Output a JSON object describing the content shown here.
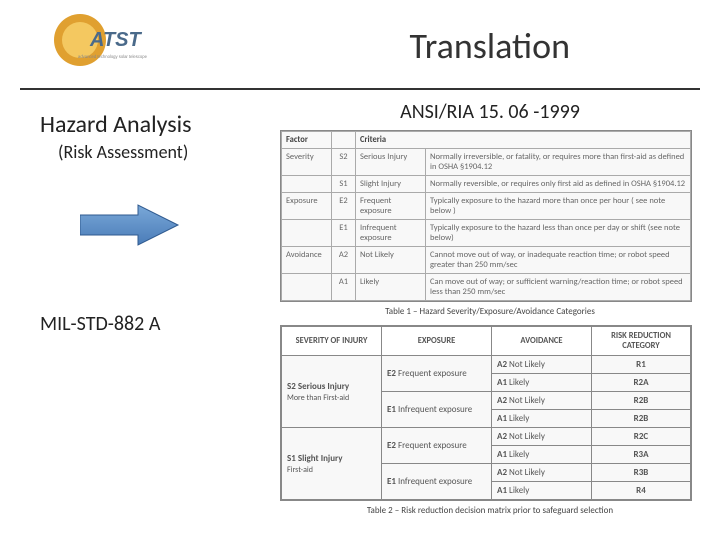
{
  "title": "Translation",
  "logo": {
    "text_top": "ATST",
    "text_bottom": "advanced technology solar telescope",
    "sun_color": "#e0a030",
    "inner_color": "#f4c860"
  },
  "left": {
    "hazard_title": "Hazard Analysis",
    "hazard_sub": "(Risk Assessment)",
    "mil_std": "MIL-STD-882 A",
    "arrow_color": "#5b8dc9",
    "arrow_stroke": "#2f5a8f"
  },
  "right": {
    "ansi_title": "ANSI/RIA 15. 06 -1999",
    "table1_caption": "Table 1 – Hazard Severity/Exposure/Avoidance Categories",
    "table2_caption": "Table 2 – Risk reduction decision matrix prior to safeguard selection",
    "t1": {
      "hdr": [
        "Factor",
        "",
        "Criteria"
      ],
      "rows": [
        [
          "Severity",
          "S2",
          "Serious Injury",
          "Normally irreversible, or fatality, or requires more than first-aid as defined in OSHA §1904.12"
        ],
        [
          "",
          "S1",
          "Slight Injury",
          "Normally reversible, or requires only first aid as defined in OSHA §1904.12"
        ],
        [
          "Exposure",
          "E2",
          "Frequent exposure",
          "Typically exposure to the hazard more than once per hour ( see note below )"
        ],
        [
          "",
          "E1",
          "Infrequent exposure",
          "Typically exposure to the hazard less than once per day or shift (see note below)"
        ],
        [
          "Avoidance",
          "A2",
          "Not Likely",
          "Cannot move out of way, or inadequate reaction time; or robot speed greater than 250 mm/sec"
        ],
        [
          "",
          "A1",
          "Likely",
          "Can move out of way; or sufficient warning/reaction time; or robot speed less than 250 mm/sec"
        ]
      ]
    },
    "t2": {
      "headers": [
        "SEVERITY OF INJURY",
        "EXPOSURE",
        "AVOIDANCE",
        "RISK REDUCTION CATEGORY"
      ],
      "groups": [
        {
          "sev": "S2 Serious Injury",
          "sev2": "More than First-aid",
          "rows": [
            [
              "E2 Frequent exposure",
              "A2 Not Likely",
              "R1"
            ],
            [
              "",
              "A1 Likely",
              "R2A"
            ],
            [
              "E1 Infrequent exposure",
              "A2 Not Likely",
              "R2B"
            ],
            [
              "",
              "A1 Likely",
              "R2B"
            ]
          ]
        },
        {
          "sev": "S1 Slight Injury",
          "sev2": "First-aid",
          "rows": [
            [
              "E2 Frequent exposure",
              "A2 Not Likely",
              "R2C"
            ],
            [
              "",
              "A1 Likely",
              "R3A"
            ],
            [
              "E1 Infrequent exposure",
              "A2 Not Likely",
              "R3B"
            ],
            [
              "",
              "A1 Likely",
              "R4"
            ]
          ]
        }
      ]
    }
  }
}
